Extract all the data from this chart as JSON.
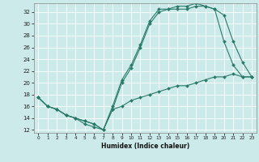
{
  "title": "",
  "xlabel": "Humidex (Indice chaleur)",
  "bg_color": "#cceaea",
  "grid_color": "#ffffff",
  "line_color": "#2a7a6a",
  "xlim": [
    -0.5,
    23.5
  ],
  "ylim": [
    11.5,
    33.5
  ],
  "xticks": [
    0,
    1,
    2,
    3,
    4,
    5,
    6,
    7,
    8,
    9,
    10,
    11,
    12,
    13,
    14,
    15,
    16,
    17,
    18,
    19,
    20,
    21,
    22,
    23
  ],
  "yticks": [
    12,
    14,
    16,
    18,
    20,
    22,
    24,
    26,
    28,
    30,
    32
  ],
  "line1": {
    "x": [
      0,
      1,
      2,
      3,
      4,
      5,
      6,
      7,
      8,
      9,
      10,
      11,
      12,
      13,
      14,
      15,
      16,
      17,
      18,
      19,
      20,
      21,
      22,
      23
    ],
    "y": [
      17.5,
      16,
      15.5,
      14.5,
      14,
      13,
      12.5,
      12,
      15.5,
      20,
      22.5,
      26,
      30,
      32,
      32.5,
      32.5,
      32.5,
      33,
      33,
      32.5,
      27,
      23,
      21,
      21
    ]
  },
  "line2": {
    "x": [
      0,
      1,
      2,
      3,
      4,
      5,
      6,
      7,
      8,
      9,
      10,
      11,
      12,
      13,
      14,
      15,
      16,
      17,
      18,
      19,
      20,
      21,
      22,
      23
    ],
    "y": [
      17.5,
      16,
      15.5,
      14.5,
      14,
      13.5,
      13,
      12,
      16,
      20.5,
      23,
      26.5,
      30.5,
      32.5,
      32.5,
      33,
      33,
      33.5,
      33,
      32.5,
      31.5,
      27,
      23.5,
      21
    ]
  },
  "line3": {
    "x": [
      0,
      1,
      2,
      3,
      4,
      5,
      6,
      7,
      8,
      9,
      10,
      11,
      12,
      13,
      14,
      15,
      16,
      17,
      18,
      19,
      20,
      21,
      22,
      23
    ],
    "y": [
      17.5,
      16,
      15.5,
      14.5,
      14,
      13.5,
      13,
      12,
      15.5,
      16,
      17,
      17.5,
      18,
      18.5,
      19,
      19.5,
      19.5,
      20,
      20.5,
      21,
      21,
      21.5,
      21,
      21
    ]
  }
}
